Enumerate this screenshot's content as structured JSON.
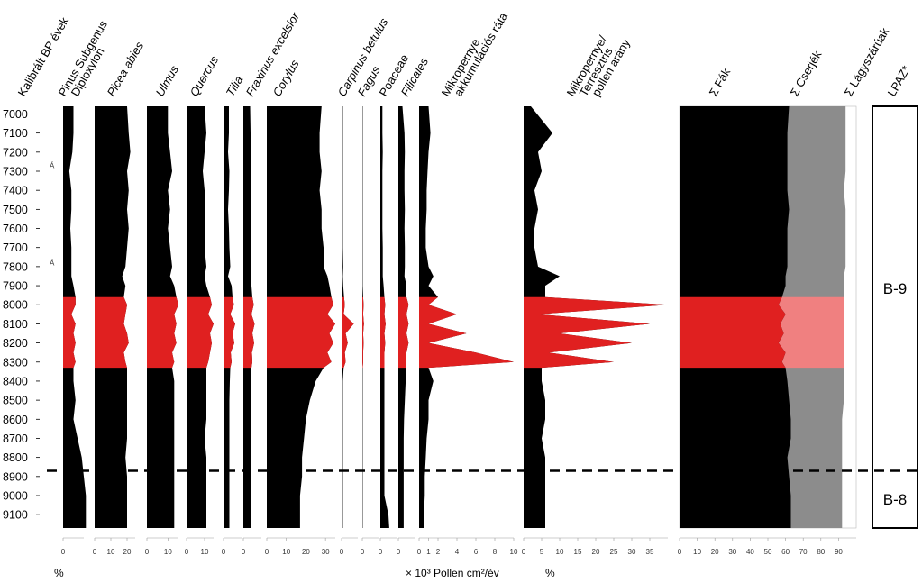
{
  "colors": {
    "fill": "#000000",
    "highlight": "#e02020",
    "shrub": "#8c8c8c",
    "shrub_highlight": "#f08080",
    "boundary": "#000000"
  },
  "chart_data": {
    "type": "area",
    "chart_kind": "stratigraphic pollen diagram",
    "y_axis_label": "Kalibrált BP évek",
    "y_ticks": [
      7000,
      7100,
      7200,
      7300,
      7400,
      7500,
      7600,
      7700,
      7800,
      7900,
      8000,
      8100,
      8200,
      8300,
      8400,
      8500,
      8600,
      8700,
      8800,
      8900,
      9000,
      9100
    ],
    "y_range": [
      6960,
      9170
    ],
    "y_direction": "downward",
    "highlight_band": [
      7960,
      8330
    ],
    "zone_boundary": 8870,
    "depth_ages": [
      6960,
      7100,
      7200,
      7300,
      7400,
      7500,
      7600,
      7700,
      7800,
      7850,
      7900,
      7960,
      8000,
      8050,
      8100,
      8150,
      8200,
      8250,
      8300,
      8330,
      8400,
      8500,
      8600,
      8700,
      8800,
      8900,
      9000,
      9100,
      9170
    ],
    "markers": [
      {
        "age": 7270,
        "label": "Á"
      },
      {
        "age": 7780,
        "label": "Á"
      }
    ],
    "percent_unit": "%",
    "influx_unit": "× 10³ Pollen cm²/év",
    "ratio_unit": "%",
    "panels": [
      {
        "id": "pinus",
        "label": "Pinus Subgenus",
        "label2": "Diploxylon",
        "italic": false,
        "min": 0,
        "max": 10,
        "ticks": [
          0
        ],
        "values": [
          5,
          5,
          4.5,
          3,
          4,
          4,
          3.5,
          4,
          4,
          4,
          5,
          6,
          6,
          4,
          6,
          5,
          6,
          5,
          6,
          5,
          5,
          6,
          5,
          7,
          9,
          10,
          11,
          11,
          11
        ]
      },
      {
        "id": "picea",
        "label": "Picea abies",
        "italic": true,
        "min": 0,
        "max": 25,
        "ticks": [
          0,
          10,
          20
        ],
        "values": [
          20,
          21,
          22,
          20,
          21,
          20,
          21,
          20,
          19,
          17,
          19,
          18,
          20,
          19,
          18,
          20,
          21,
          18,
          19,
          20,
          20,
          20,
          20,
          20,
          19,
          20,
          20,
          20,
          20
        ]
      },
      {
        "id": "ulmus",
        "label": "Ulmus",
        "italic": true,
        "min": 0,
        "max": 15,
        "ticks": [
          0,
          10
        ],
        "values": [
          10,
          10,
          11,
          12,
          10,
          11,
          10,
          11,
          12,
          11,
          13,
          14,
          15,
          13,
          14,
          13,
          14,
          12,
          13,
          12,
          13,
          13,
          13,
          13,
          13,
          13,
          13,
          13,
          13
        ]
      },
      {
        "id": "quercus",
        "label": "Quercus",
        "italic": true,
        "min": 0,
        "max": 15,
        "ticks": [
          0,
          10
        ],
        "values": [
          10,
          11,
          10,
          9,
          10,
          10,
          10,
          10,
          11,
          10,
          11,
          13,
          14,
          12,
          15,
          13,
          14,
          13,
          12,
          11,
          11,
          11,
          11,
          10,
          11,
          11,
          11,
          11,
          11
        ]
      },
      {
        "id": "tilia",
        "label": "Tilia",
        "italic": true,
        "min": 0,
        "max": 4,
        "ticks": [
          0
        ],
        "values": [
          1.2,
          1.2,
          1,
          1.3,
          1.2,
          1,
          1.2,
          1.3,
          1.5,
          1,
          1.8,
          2,
          2.3,
          1.5,
          2.6,
          2,
          2.4,
          1.6,
          1.8,
          1.5,
          1.4,
          1.3,
          1.3,
          1.3,
          1.3,
          1.3,
          1.3,
          1.3,
          1.3
        ]
      },
      {
        "id": "fraxinus",
        "label": "Fraxinus excelsior",
        "italic": true,
        "min": 0,
        "max": 4,
        "ticks": [
          0
        ],
        "values": [
          1.5,
          1.6,
          1.8,
          1.7,
          1.6,
          1.6,
          1.8,
          1.6,
          1.8,
          1.6,
          1.8,
          2,
          2.3,
          1.8,
          2.5,
          2,
          2.4,
          1.9,
          2,
          1.8,
          1.8,
          1.8,
          1.8,
          1.8,
          1.8,
          1.8,
          1.8,
          1.8,
          1.8
        ]
      },
      {
        "id": "corylus",
        "label": "Corylus",
        "italic": true,
        "min": 0,
        "max": 35,
        "ticks": [
          0,
          10,
          20,
          30
        ],
        "values": [
          28,
          27,
          27,
          28,
          27,
          28,
          28,
          29,
          29,
          31,
          32,
          33,
          34,
          31,
          35,
          32,
          34,
          31,
          33,
          29,
          25,
          22,
          20,
          19,
          18,
          18,
          17,
          17,
          17
        ]
      },
      {
        "id": "carpinus",
        "label": "Carpinus betulus",
        "italic": true,
        "min": 0,
        "max": 4,
        "ticks": [
          0
        ],
        "values": [
          0.3,
          0.3,
          0.3,
          0.3,
          0.3,
          0.3,
          0.3,
          0.3,
          0.4,
          0.3,
          0.4,
          0.6,
          0.8,
          0.5,
          3,
          1,
          1.5,
          0.8,
          1,
          0.5,
          0.3,
          0.3,
          0.3,
          0.3,
          0.3,
          0.3,
          0.3,
          0.3,
          0.3
        ]
      },
      {
        "id": "fagus",
        "label": "Fagus",
        "italic": true,
        "min": 0,
        "max": 4,
        "ticks": [
          0
        ],
        "values": [
          0.1,
          0.1,
          0.1,
          0.1,
          0.1,
          0.1,
          0.1,
          0.1,
          0.1,
          0.1,
          0.1,
          0.2,
          0.3,
          0.2,
          0.4,
          0.2,
          0.3,
          0.2,
          0.2,
          0.1,
          0.1,
          0.1,
          0.1,
          0.1,
          0.1,
          0.1,
          0.1,
          0.1,
          0.1
        ]
      },
      {
        "id": "poaceae",
        "label": "Poaceae",
        "italic": false,
        "min": 0,
        "max": 4,
        "ticks": [
          0
        ],
        "values": [
          0.5,
          0.5,
          0.6,
          0.5,
          0.5,
          0.5,
          0.5,
          0.6,
          0.6,
          0.6,
          0.8,
          1,
          1.2,
          1,
          1.3,
          1,
          1.2,
          1,
          1,
          1,
          1,
          1,
          1,
          1,
          1,
          1,
          1,
          2,
          2.2
        ]
      },
      {
        "id": "filicales",
        "label": "Filicales",
        "italic": true,
        "min": 0,
        "max": 4,
        "ticks": [
          0
        ],
        "values": [
          1,
          1.5,
          1.6,
          1.5,
          1.5,
          1.6,
          1.5,
          1.6,
          1.6,
          1.5,
          2,
          2,
          2.5,
          2,
          2.5,
          2,
          2.5,
          2,
          2,
          2,
          1.8,
          1.6,
          1.4,
          1.3,
          1.3,
          1.3,
          1.3,
          1.3,
          1.3
        ]
      },
      {
        "id": "mikro_akk",
        "label": "Mikropernye",
        "label2": "akkumulációs ráta",
        "italic": false,
        "min": 0,
        "max": 10,
        "ticks": [
          0,
          1,
          2,
          4,
          6,
          8,
          10
        ],
        "values": [
          1,
          1.2,
          1,
          0.9,
          0.8,
          0.8,
          0.7,
          0.7,
          1,
          1.5,
          1,
          2,
          1,
          4,
          1,
          5,
          1,
          6,
          10,
          1,
          1.5,
          1,
          1,
          0.8,
          0.7,
          0.6,
          0.6,
          0.5,
          0.5
        ]
      },
      {
        "id": "mikro_ratio",
        "label": "Mikropernye/",
        "label2": "Terresztris",
        "label3": "pollen arány",
        "italic": false,
        "min": 0,
        "max": 40,
        "ticks": [
          0,
          5,
          10,
          15,
          20,
          25,
          30,
          35
        ],
        "values": [
          2,
          8,
          4,
          5,
          3,
          4,
          3,
          3,
          4,
          10,
          6,
          6,
          40,
          4,
          35,
          10,
          30,
          7,
          25,
          5,
          5,
          6,
          6,
          5,
          6,
          6,
          6,
          6,
          6
        ]
      },
      {
        "id": "sums",
        "type": "stacked",
        "label": "Σ Fák",
        "label2": "Σ Cserjék",
        "label3": "Σ Lágyszárúak",
        "min": 0,
        "max": 100,
        "ticks": [
          0,
          10,
          20,
          30,
          40,
          50,
          60,
          70,
          80,
          90
        ],
        "trees": [
          62,
          61,
          61,
          61,
          61,
          62,
          61,
          61,
          61,
          60,
          60,
          58,
          56,
          60,
          57,
          59,
          56,
          60,
          58,
          60,
          61,
          62,
          63,
          63,
          61,
          62,
          63,
          63,
          63
        ],
        "shrubs": [
          94,
          94,
          94,
          94,
          93,
          94,
          94,
          94,
          94,
          93,
          93,
          93,
          93,
          93,
          93,
          93,
          93,
          93,
          93,
          93,
          93,
          93,
          92,
          92,
          92,
          92,
          92,
          92,
          92
        ]
      }
    ],
    "zones": {
      "label": "LPAZ*",
      "items": [
        {
          "name": "B-9",
          "from": 6960,
          "to": 8870
        },
        {
          "name": "B-8",
          "from": 8870,
          "to": 9170
        }
      ]
    }
  }
}
